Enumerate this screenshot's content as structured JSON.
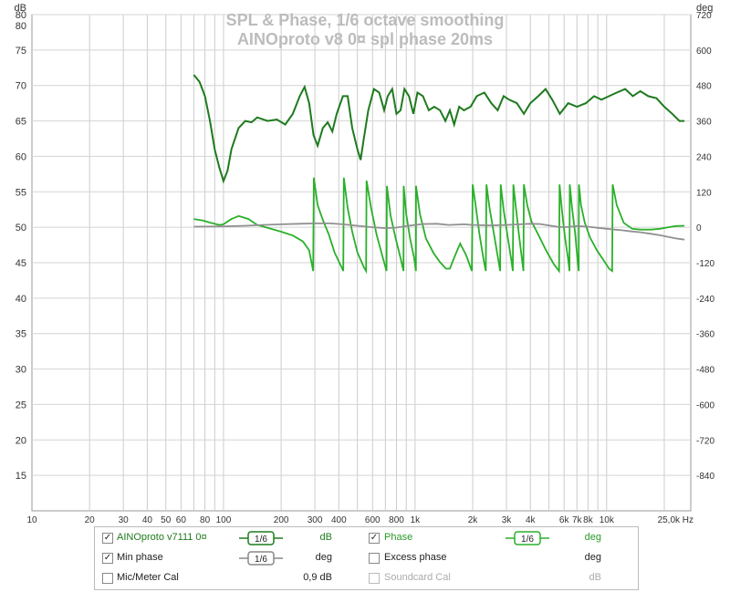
{
  "chart_data": {
    "type": "line",
    "title": "SPL & Phase, 1/6 octave smoothing",
    "subtitle": "AINOproto v8 0¤ spl phase 20ms",
    "y_left_unit": "dB",
    "y_right_unit": "deg",
    "x_unit": "Hz",
    "x_scale": "log",
    "xlim": [
      10,
      27500
    ],
    "ylim_left": [
      10,
      80
    ],
    "ylim_right": [
      -960,
      720
    ],
    "x_ticks": [
      {
        "v": 10,
        "label": "10"
      },
      {
        "v": 20,
        "label": "20"
      },
      {
        "v": 30,
        "label": "30"
      },
      {
        "v": 40,
        "label": "40"
      },
      {
        "v": 50,
        "label": "50"
      },
      {
        "v": 60,
        "label": "60"
      },
      {
        "v": 80,
        "label": "80"
      },
      {
        "v": 100,
        "label": "100"
      },
      {
        "v": 200,
        "label": "200"
      },
      {
        "v": 300,
        "label": "300"
      },
      {
        "v": 400,
        "label": "400"
      },
      {
        "v": 600,
        "label": "600"
      },
      {
        "v": 800,
        "label": "800"
      },
      {
        "v": 1000,
        "label": "1k"
      },
      {
        "v": 2000,
        "label": "2k"
      },
      {
        "v": 3000,
        "label": "3k"
      },
      {
        "v": 4000,
        "label": "4k"
      },
      {
        "v": 6000,
        "label": "6k"
      },
      {
        "v": 7000,
        "label": "7k"
      },
      {
        "v": 8000,
        "label": "8k"
      },
      {
        "v": 10000,
        "label": "10k"
      },
      {
        "v": 25000,
        "label": "25,0k Hz"
      }
    ],
    "y_left_ticks": [
      15,
      20,
      25,
      30,
      35,
      40,
      45,
      50,
      55,
      60,
      65,
      70,
      75,
      80
    ],
    "y_right_ticks": [
      -840,
      -720,
      -600,
      -480,
      -360,
      -240,
      -120,
      0,
      120,
      240,
      360,
      480,
      600,
      720
    ],
    "series": [
      {
        "name": "AINOproto v7111 0¤",
        "axis": "left",
        "color": "#1e7a1e",
        "points": [
          [
            70,
            71.5
          ],
          [
            75,
            70.5
          ],
          [
            80,
            68.5
          ],
          [
            85,
            65
          ],
          [
            90,
            61
          ],
          [
            95,
            58.5
          ],
          [
            100,
            56.5
          ],
          [
            105,
            58
          ],
          [
            110,
            61
          ],
          [
            120,
            64
          ],
          [
            130,
            65
          ],
          [
            140,
            64.8
          ],
          [
            150,
            65.5
          ],
          [
            170,
            65
          ],
          [
            190,
            65.2
          ],
          [
            210,
            64.5
          ],
          [
            230,
            66
          ],
          [
            250,
            68.5
          ],
          [
            265,
            69.8
          ],
          [
            280,
            67.5
          ],
          [
            295,
            63
          ],
          [
            310,
            61.5
          ],
          [
            330,
            64
          ],
          [
            350,
            64.8
          ],
          [
            370,
            63.5
          ],
          [
            390,
            66
          ],
          [
            420,
            68.5
          ],
          [
            445,
            68.5
          ],
          [
            470,
            64
          ],
          [
            500,
            61
          ],
          [
            520,
            59.5
          ],
          [
            540,
            62.5
          ],
          [
            570,
            66.5
          ],
          [
            610,
            69.5
          ],
          [
            650,
            69
          ],
          [
            690,
            66.5
          ],
          [
            720,
            68.5
          ],
          [
            760,
            69.5
          ],
          [
            800,
            66
          ],
          [
            840,
            66.5
          ],
          [
            880,
            69.5
          ],
          [
            930,
            68.5
          ],
          [
            980,
            66
          ],
          [
            1030,
            69
          ],
          [
            1100,
            68.5
          ],
          [
            1180,
            66.5
          ],
          [
            1260,
            67
          ],
          [
            1350,
            66.5
          ],
          [
            1440,
            65
          ],
          [
            1520,
            66.5
          ],
          [
            1600,
            64.5
          ],
          [
            1700,
            67
          ],
          [
            1800,
            66.5
          ],
          [
            1950,
            67
          ],
          [
            2100,
            68.5
          ],
          [
            2300,
            69
          ],
          [
            2500,
            67.5
          ],
          [
            2700,
            66.5
          ],
          [
            2900,
            68.5
          ],
          [
            3100,
            68
          ],
          [
            3400,
            67.5
          ],
          [
            3700,
            66
          ],
          [
            4000,
            67.5
          ],
          [
            4400,
            68.5
          ],
          [
            4800,
            69.5
          ],
          [
            5200,
            68
          ],
          [
            5700,
            66
          ],
          [
            6300,
            67.5
          ],
          [
            7000,
            67
          ],
          [
            7800,
            67.5
          ],
          [
            8600,
            68.5
          ],
          [
            9400,
            68
          ],
          [
            10300,
            68.5
          ],
          [
            11300,
            69
          ],
          [
            12500,
            69.5
          ],
          [
            13700,
            68.5
          ],
          [
            15000,
            69.2
          ],
          [
            16500,
            68.5
          ],
          [
            18200,
            68.2
          ],
          [
            20000,
            67
          ],
          [
            22000,
            66
          ],
          [
            24000,
            65
          ],
          [
            25500,
            65
          ]
        ]
      },
      {
        "name": "Phase",
        "axis": "right",
        "color": "#2ab02a",
        "wrap": true,
        "points": [
          [
            70,
            28
          ],
          [
            78,
            23
          ],
          [
            85,
            16
          ],
          [
            95,
            8
          ],
          [
            100,
            10
          ],
          [
            110,
            28
          ],
          [
            120,
            38
          ],
          [
            135,
            28
          ],
          [
            150,
            8
          ],
          [
            170,
            -2
          ],
          [
            200,
            -15
          ],
          [
            230,
            -28
          ],
          [
            260,
            -48
          ],
          [
            280,
            -78
          ],
          [
            294,
            -148
          ],
          [
            296,
            168
          ],
          [
            310,
            75
          ],
          [
            330,
            25
          ],
          [
            355,
            -25
          ],
          [
            380,
            -85
          ],
          [
            415,
            -138
          ],
          [
            422,
            -148
          ],
          [
            425,
            168
          ],
          [
            445,
            65
          ],
          [
            470,
            -15
          ],
          [
            500,
            -85
          ],
          [
            540,
            -135
          ],
          [
            555,
            -148
          ],
          [
            558,
            158
          ],
          [
            590,
            65
          ],
          [
            630,
            -25
          ],
          [
            680,
            -105
          ],
          [
            710,
            -148
          ],
          [
            713,
            140
          ],
          [
            745,
            40
          ],
          [
            790,
            -35
          ],
          [
            840,
            -105
          ],
          [
            870,
            -148
          ],
          [
            872,
            140
          ],
          [
            900,
            45
          ],
          [
            940,
            -35
          ],
          [
            990,
            -105
          ],
          [
            1010,
            -148
          ],
          [
            1012,
            140
          ],
          [
            1060,
            45
          ],
          [
            1140,
            -38
          ],
          [
            1250,
            -88
          ],
          [
            1350,
            -118
          ],
          [
            1450,
            -140
          ],
          [
            1520,
            -140
          ],
          [
            1620,
            -95
          ],
          [
            1720,
            -55
          ],
          [
            1850,
            -95
          ],
          [
            1980,
            -148
          ],
          [
            2000,
            145
          ],
          [
            2070,
            75
          ],
          [
            2170,
            -25
          ],
          [
            2280,
            -110
          ],
          [
            2340,
            -148
          ],
          [
            2360,
            145
          ],
          [
            2450,
            65
          ],
          [
            2600,
            -35
          ],
          [
            2720,
            -110
          ],
          [
            2780,
            -148
          ],
          [
            2800,
            145
          ],
          [
            2900,
            60
          ],
          [
            3050,
            -35
          ],
          [
            3180,
            -110
          ],
          [
            3240,
            -148
          ],
          [
            3260,
            145
          ],
          [
            3370,
            60
          ],
          [
            3500,
            -35
          ],
          [
            3620,
            -110
          ],
          [
            3680,
            -148
          ],
          [
            3700,
            145
          ],
          [
            3850,
            75
          ],
          [
            4050,
            20
          ],
          [
            4400,
            -25
          ],
          [
            4800,
            -75
          ],
          [
            5300,
            -125
          ],
          [
            5650,
            -148
          ],
          [
            5680,
            145
          ],
          [
            5850,
            55
          ],
          [
            6050,
            -30
          ],
          [
            6300,
            -110
          ],
          [
            6400,
            -148
          ],
          [
            6420,
            145
          ],
          [
            6600,
            65
          ],
          [
            6850,
            -20
          ],
          [
            7050,
            -110
          ],
          [
            7150,
            -148
          ],
          [
            7170,
            145
          ],
          [
            7350,
            75
          ],
          [
            7700,
            15
          ],
          [
            8200,
            -35
          ],
          [
            8900,
            -78
          ],
          [
            9600,
            -110
          ],
          [
            10300,
            -140
          ],
          [
            10700,
            -148
          ],
          [
            10750,
            145
          ],
          [
            11300,
            75
          ],
          [
            12300,
            15
          ],
          [
            13600,
            -5
          ],
          [
            15000,
            -8
          ],
          [
            17000,
            -8
          ],
          [
            19000,
            -5
          ],
          [
            21000,
            0
          ],
          [
            23000,
            4
          ],
          [
            25500,
            5
          ]
        ]
      },
      {
        "name": "Min phase",
        "axis": "right",
        "color": "#909090",
        "points": [
          [
            70,
            2
          ],
          [
            100,
            3
          ],
          [
            130,
            5
          ],
          [
            160,
            8
          ],
          [
            200,
            10
          ],
          [
            250,
            12
          ],
          [
            300,
            13
          ],
          [
            360,
            13
          ],
          [
            420,
            10
          ],
          [
            500,
            5
          ],
          [
            600,
            0
          ],
          [
            700,
            -3
          ],
          [
            800,
            -1
          ],
          [
            900,
            4
          ],
          [
            1000,
            8
          ],
          [
            1100,
            11
          ],
          [
            1300,
            12
          ],
          [
            1500,
            8
          ],
          [
            1800,
            10
          ],
          [
            2000,
            8
          ],
          [
            2500,
            6
          ],
          [
            3000,
            8
          ],
          [
            3500,
            10
          ],
          [
            4000,
            12
          ],
          [
            4500,
            11
          ],
          [
            5000,
            6
          ],
          [
            5500,
            2
          ],
          [
            6000,
            0
          ],
          [
            6500,
            2
          ],
          [
            7000,
            4
          ],
          [
            8000,
            2
          ],
          [
            9000,
            -2
          ],
          [
            10000,
            -5
          ],
          [
            11000,
            -8
          ],
          [
            12000,
            -10
          ],
          [
            13500,
            -14
          ],
          [
            15000,
            -17
          ],
          [
            17000,
            -22
          ],
          [
            19000,
            -27
          ],
          [
            21000,
            -33
          ],
          [
            23000,
            -38
          ],
          [
            25500,
            -42
          ]
        ]
      }
    ],
    "annotations": []
  },
  "legend": {
    "rows": [
      {
        "left": {
          "checked": true,
          "label": "AINOproto v7111 0¤",
          "smoothing": "1/6",
          "value": "dB",
          "color": "#1e7a1e"
        },
        "right": {
          "checked": true,
          "label": "Phase",
          "smoothing": "1/6",
          "value": "deg",
          "color": "#2ab02a"
        }
      },
      {
        "left": {
          "checked": true,
          "label": "Min phase",
          "smoothing": "1/6",
          "value": "deg",
          "color": "#888888"
        },
        "right": {
          "checked": false,
          "label": "Excess phase",
          "smoothing": "",
          "value": "deg",
          "color": "#222222"
        }
      },
      {
        "left": {
          "checked": false,
          "label": "Mic/Meter Cal",
          "smoothing": "",
          "value": "0,9 dB",
          "color": "#222222"
        },
        "right": {
          "checked": false,
          "label": "Soundcard Cal",
          "smoothing": "",
          "value": "dB",
          "color": "#aaaaaa"
        }
      }
    ]
  }
}
